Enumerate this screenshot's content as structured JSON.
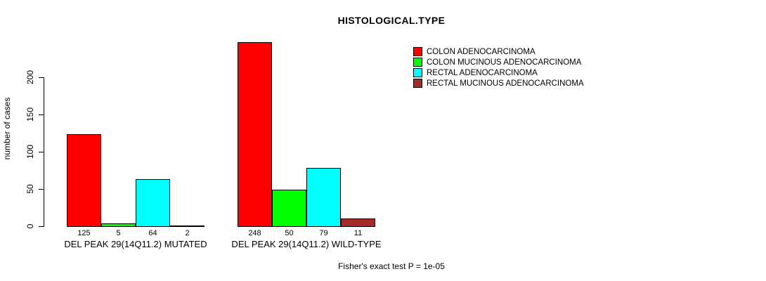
{
  "title": "HISTOLOGICAL.TYPE",
  "y_axis": {
    "label": "number of cases",
    "ticks": [
      0,
      50,
      100,
      150,
      200
    ]
  },
  "footer": "Fisher's exact test P = 1e-05",
  "colors": {
    "bar_red": "#FF0000",
    "bar_green": "#00FF00",
    "bar_cyan": "#00FFFF",
    "bar_brown": "#A52A2A",
    "axis": "#000000",
    "background": "#FFFFFF"
  },
  "chart_data": {
    "type": "bar",
    "title": "HISTOLOGICAL.TYPE",
    "xlabel": "",
    "ylabel": "number of cases",
    "categories": [
      "DEL PEAK 29(14Q11.2) MUTATED",
      "DEL PEAK 29(14Q11.2) WILD-TYPE"
    ],
    "series": [
      {
        "name": "COLON ADENOCARCINOMA",
        "color": "#FF0000",
        "values": [
          125,
          248
        ]
      },
      {
        "name": "COLON MUCINOUS ADENOCARCINOMA",
        "color": "#00FF00",
        "values": [
          5,
          50
        ]
      },
      {
        "name": "RECTAL ADENOCARCINOMA",
        "color": "#00FFFF",
        "values": [
          64,
          79
        ]
      },
      {
        "name": "RECTAL MUCINOUS ADENOCARCINOMA",
        "color": "#A52A2A",
        "values": [
          2,
          11
        ]
      }
    ],
    "bar_value_labels": [
      [
        125,
        5,
        64,
        2
      ],
      [
        248,
        50,
        79,
        11
      ]
    ],
    "yticks": [
      0,
      50,
      100,
      150,
      200
    ],
    "ylim": [
      0,
      260
    ],
    "grid": false,
    "legend_position": "top-right",
    "annotation": "Fisher's exact test P = 1e-05"
  }
}
